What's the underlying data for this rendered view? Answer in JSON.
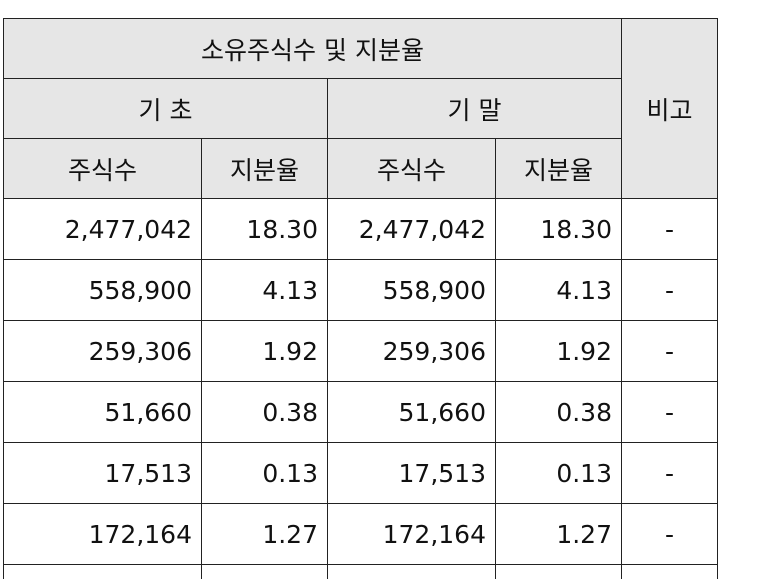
{
  "header": {
    "group_title": "소유주식수 및 지분율",
    "remark": "비고",
    "period_begin": "기 초",
    "period_end": "기 말",
    "col_shares": "주식수",
    "col_ratio": "지분율"
  },
  "rows": [
    {
      "begin_shares": "2,477,042",
      "begin_ratio": "18.30",
      "end_shares": "2,477,042",
      "end_ratio": "18.30",
      "remark": "-"
    },
    {
      "begin_shares": "558,900",
      "begin_ratio": "4.13",
      "end_shares": "558,900",
      "end_ratio": "4.13",
      "remark": "-"
    },
    {
      "begin_shares": "259,306",
      "begin_ratio": "1.92",
      "end_shares": "259,306",
      "end_ratio": "1.92",
      "remark": "-"
    },
    {
      "begin_shares": "51,660",
      "begin_ratio": "0.38",
      "end_shares": "51,660",
      "end_ratio": "0.38",
      "remark": "-"
    },
    {
      "begin_shares": "17,513",
      "begin_ratio": "0.13",
      "end_shares": "17,513",
      "end_ratio": "0.13",
      "remark": "-"
    },
    {
      "begin_shares": "172,164",
      "begin_ratio": "1.27",
      "end_shares": "172,164",
      "end_ratio": "1.27",
      "remark": "-"
    }
  ]
}
